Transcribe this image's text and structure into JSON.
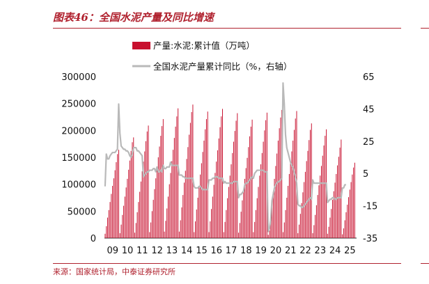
{
  "figure": {
    "title": "图表46：全国水泥产量及同比增速",
    "source": "来源：国家统计局，中泰证券研究所"
  },
  "chart_data": {
    "type": "bar",
    "legend": [
      {
        "name": "产量:水泥:累计值（万吨）",
        "kind": "bar",
        "color": "#c8102e"
      },
      {
        "name": "全国水泥产量累计同比（%，右轴）",
        "kind": "line",
        "color": "#b9b9b9"
      }
    ],
    "years": [
      "09",
      "10",
      "11",
      "12",
      "13",
      "14",
      "15",
      "16",
      "17",
      "18",
      "19",
      "20",
      "21",
      "22",
      "23",
      "24",
      "25"
    ],
    "left_axis": {
      "ticks": [
        0,
        50000,
        100000,
        150000,
        200000,
        250000,
        300000
      ],
      "range": [
        0,
        300000
      ]
    },
    "right_axis": {
      "ticks": [
        -35,
        -15,
        5,
        25,
        45,
        65
      ],
      "range": [
        -35,
        65
      ]
    },
    "annual_totals": [
      164000,
      187000,
      209000,
      221000,
      241000,
      248000,
      235000,
      240000,
      232000,
      220000,
      233000,
      238000,
      236000,
      213000,
      202000,
      183000,
      140000
    ],
    "cumulative_bars": [
      [
        8000,
        22000,
        38000,
        52000,
        67000,
        82000,
        97000,
        111000,
        126000,
        141000,
        156000,
        164000
      ],
      [
        9000,
        25000,
        43000,
        60000,
        77000,
        94000,
        110000,
        127000,
        144000,
        162000,
        178000,
        187000
      ],
      [
        10000,
        28000,
        48000,
        67000,
        86000,
        105000,
        124000,
        142000,
        161000,
        180000,
        198000,
        209000
      ],
      [
        11000,
        29000,
        50000,
        71000,
        91000,
        111000,
        130000,
        150000,
        170000,
        190000,
        208000,
        221000
      ],
      [
        12000,
        32000,
        55000,
        77000,
        100000,
        121000,
        143000,
        164000,
        186000,
        207000,
        226000,
        241000
      ],
      [
        12000,
        33000,
        57000,
        80000,
        103000,
        125000,
        147000,
        169000,
        192000,
        214000,
        234000,
        248000
      ],
      [
        11000,
        31000,
        53000,
        75000,
        97000,
        118000,
        139000,
        160000,
        181000,
        202000,
        221000,
        235000
      ],
      [
        11000,
        31000,
        54000,
        77000,
        99000,
        121000,
        142000,
        163000,
        185000,
        206000,
        226000,
        240000
      ],
      [
        11000,
        30000,
        52000,
        74000,
        95000,
        116000,
        137000,
        158000,
        179000,
        199000,
        218000,
        232000
      ],
      [
        10000,
        28000,
        49000,
        70000,
        90000,
        110000,
        130000,
        149000,
        169000,
        189000,
        207000,
        220000
      ],
      [
        11000,
        30000,
        52000,
        74000,
        95000,
        116000,
        137000,
        158000,
        179000,
        200000,
        219000,
        233000
      ],
      [
        6000,
        14000,
        33000,
        60000,
        86000,
        110000,
        134000,
        157000,
        181000,
        204000,
        224000,
        238000
      ],
      [
        11000,
        29000,
        52000,
        75000,
        97000,
        119000,
        140000,
        161000,
        181000,
        201000,
        222000,
        236000
      ],
      [
        9000,
        25000,
        45000,
        65000,
        85000,
        104000,
        123000,
        143000,
        162000,
        182000,
        201000,
        213000
      ],
      [
        9000,
        24000,
        43000,
        61000,
        80000,
        98000,
        116000,
        134000,
        153000,
        172000,
        190000,
        202000
      ],
      [
        8000,
        21000,
        38000,
        54000,
        71000,
        87000,
        103000,
        119000,
        135000,
        151000,
        168000,
        183000
      ],
      [
        7000,
        18000,
        33000,
        48000,
        62000,
        76000,
        90000,
        104000,
        118000,
        131000,
        140000
      ]
    ],
    "growth_line": [
      [
        0,
        -3
      ],
      [
        1,
        17
      ],
      [
        2,
        14
      ],
      [
        3,
        14
      ],
      [
        4,
        16
      ],
      [
        5,
        17
      ],
      [
        6,
        18
      ],
      [
        7,
        18
      ],
      [
        8,
        18
      ],
      [
        9,
        19
      ],
      [
        10,
        20
      ],
      [
        11,
        48
      ],
      [
        12,
        30
      ],
      [
        13,
        22
      ],
      [
        14,
        21
      ],
      [
        15,
        20
      ],
      [
        16,
        20
      ],
      [
        17,
        19
      ],
      [
        18,
        19
      ],
      [
        19,
        18
      ],
      [
        20,
        16
      ],
      [
        21,
        15
      ],
      [
        22,
        17
      ],
      [
        23,
        21
      ],
      [
        24,
        21
      ],
      [
        25,
        21
      ],
      [
        26,
        19
      ],
      [
        27,
        19
      ],
      [
        28,
        18
      ],
      [
        29,
        17
      ],
      [
        30,
        16
      ],
      [
        31,
        3
      ],
      [
        32,
        4
      ],
      [
        33,
        5
      ],
      [
        34,
        6
      ],
      [
        35,
        6
      ],
      [
        36,
        7
      ],
      [
        37,
        7
      ],
      [
        38,
        7
      ],
      [
        39,
        8
      ],
      [
        40,
        8
      ],
      [
        41,
        6
      ],
      [
        42,
        9
      ],
      [
        43,
        6
      ],
      [
        44,
        6
      ],
      [
        45,
        7
      ],
      [
        46,
        6
      ],
      [
        47,
        10
      ],
      [
        48,
        8
      ],
      [
        49,
        8
      ],
      [
        50,
        9
      ],
      [
        51,
        9
      ],
      [
        52,
        9
      ],
      [
        53,
        12
      ],
      [
        54,
        10
      ],
      [
        55,
        10
      ],
      [
        56,
        10
      ],
      [
        57,
        10
      ],
      [
        58,
        10
      ],
      [
        59,
        10
      ],
      [
        60,
        4
      ],
      [
        61,
        4
      ],
      [
        62,
        4
      ],
      [
        63,
        3
      ],
      [
        64,
        3
      ],
      [
        65,
        2
      ],
      [
        66,
        2
      ],
      [
        67,
        2
      ],
      [
        68,
        2
      ],
      [
        69,
        2
      ],
      [
        70,
        2
      ],
      [
        71,
        2
      ],
      [
        72,
        -3
      ],
      [
        73,
        -4
      ],
      [
        74,
        -4
      ],
      [
        75,
        -4
      ],
      [
        76,
        -3
      ],
      [
        77,
        -3
      ],
      [
        78,
        -4
      ],
      [
        79,
        -5
      ],
      [
        80,
        -5
      ],
      [
        81,
        -5
      ],
      [
        82,
        -5
      ],
      [
        83,
        -5
      ],
      [
        84,
        1
      ],
      [
        85,
        1
      ],
      [
        86,
        1
      ],
      [
        87,
        2
      ],
      [
        88,
        2
      ],
      [
        89,
        3
      ],
      [
        90,
        3
      ],
      [
        91,
        3
      ],
      [
        92,
        2
      ],
      [
        93,
        2
      ],
      [
        94,
        2
      ],
      [
        95,
        2
      ],
      [
        96,
        -1
      ],
      [
        97,
        0
      ],
      [
        98,
        -1
      ],
      [
        99,
        -1
      ],
      [
        100,
        -1
      ],
      [
        101,
        -1
      ],
      [
        102,
        -1
      ],
      [
        103,
        -1
      ],
      [
        104,
        0
      ],
      [
        105,
        0
      ],
      [
        106,
        0
      ],
      [
        107,
        0
      ],
      [
        108,
        -10
      ],
      [
        109,
        -8
      ],
      [
        110,
        -8
      ],
      [
        111,
        -7
      ],
      [
        112,
        -6
      ],
      [
        113,
        -2
      ],
      [
        114,
        -1
      ],
      [
        115,
        -1
      ],
      [
        116,
        0
      ],
      [
        117,
        1
      ],
      [
        118,
        2
      ],
      [
        119,
        3
      ],
      [
        120,
        2
      ],
      [
        121,
        5
      ],
      [
        122,
        6
      ],
      [
        123,
        7
      ],
      [
        124,
        7
      ],
      [
        125,
        7
      ],
      [
        126,
        7
      ],
      [
        127,
        7
      ],
      [
        128,
        7
      ],
      [
        129,
        6
      ],
      [
        130,
        6
      ],
      [
        131,
        6
      ],
      [
        132,
        -31
      ],
      [
        133,
        -29
      ],
      [
        134,
        -24
      ],
      [
        135,
        -12
      ],
      [
        136,
        -8
      ],
      [
        137,
        -4
      ],
      [
        138,
        -2
      ],
      [
        139,
        -1
      ],
      [
        140,
        0
      ],
      [
        141,
        0
      ],
      [
        142,
        1
      ],
      [
        143,
        2
      ],
      [
        144,
        61
      ],
      [
        145,
        48
      ],
      [
        146,
        29
      ],
      [
        147,
        21
      ],
      [
        148,
        18
      ],
      [
        149,
        15
      ],
      [
        150,
        12
      ],
      [
        151,
        10
      ],
      [
        152,
        9
      ],
      [
        153,
        6
      ],
      [
        154,
        3
      ],
      [
        155,
        -1
      ],
      [
        156,
        -14
      ],
      [
        157,
        -15
      ],
      [
        158,
        -15
      ],
      [
        159,
        -16
      ],
      [
        160,
        -16
      ],
      [
        161,
        -15
      ],
      [
        162,
        -14
      ],
      [
        163,
        -13
      ],
      [
        164,
        -12
      ],
      [
        165,
        -11
      ],
      [
        166,
        -10
      ],
      [
        167,
        -11
      ],
      [
        168,
        1
      ],
      [
        169,
        -1
      ],
      [
        170,
        -1
      ],
      [
        171,
        -1
      ],
      [
        172,
        -1
      ],
      [
        173,
        -1
      ],
      [
        174,
        -1
      ],
      [
        175,
        -1
      ],
      [
        176,
        -1
      ],
      [
        177,
        -1
      ],
      [
        178,
        -1
      ],
      [
        179,
        -1
      ],
      [
        180,
        -13
      ],
      [
        181,
        -12
      ],
      [
        182,
        -11
      ],
      [
        183,
        -11
      ],
      [
        184,
        -10
      ],
      [
        185,
        -10
      ],
      [
        186,
        -11
      ],
      [
        187,
        -11
      ],
      [
        188,
        -10
      ],
      [
        189,
        -10
      ],
      [
        190,
        -10
      ],
      [
        191,
        -10
      ],
      [
        192,
        -4
      ],
      [
        193,
        -4
      ],
      [
        194,
        -2
      ],
      [
        195,
        -2
      ]
    ]
  }
}
